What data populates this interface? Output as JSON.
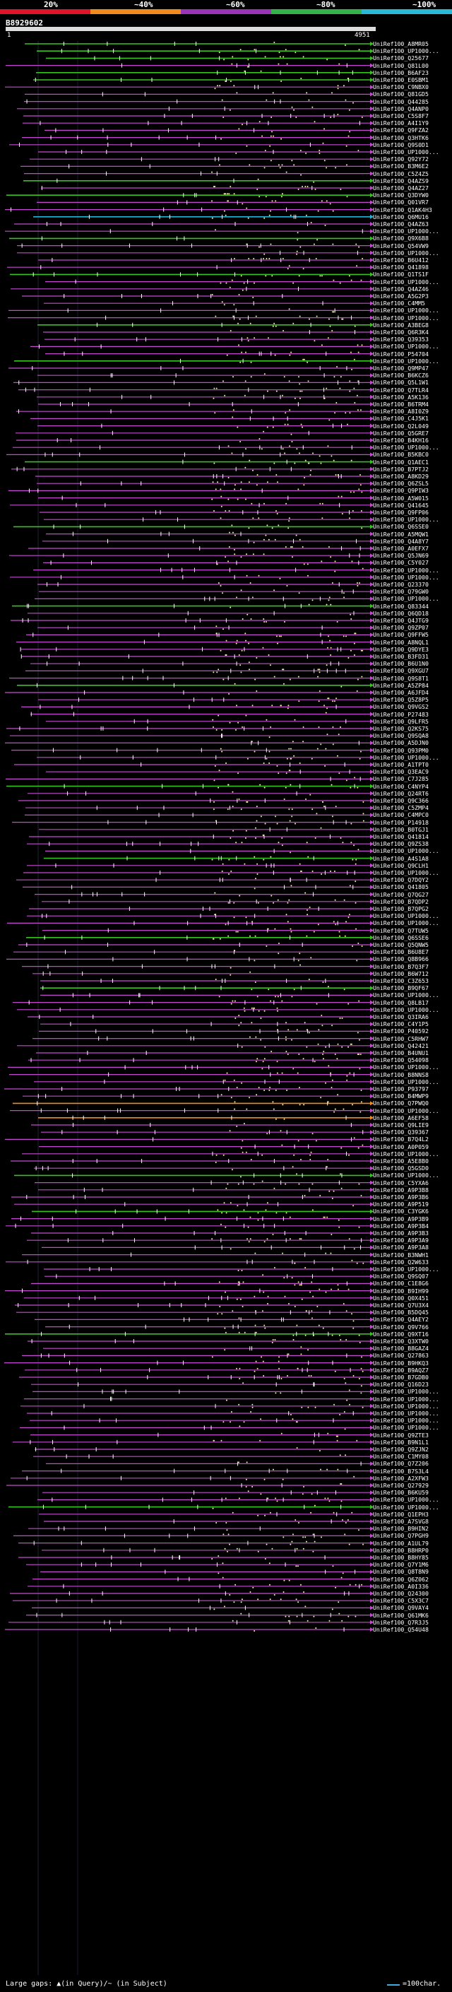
{
  "query": {
    "name": "B8929602",
    "start": "1",
    "end": "4951"
  },
  "scale": {
    "labels": [
      "20%",
      "~40%",
      "~60%",
      "~80%",
      "~100%"
    ],
    "colors": [
      "#e0132a",
      "#f08a1a",
      "#9b33b8",
      "#33b34a",
      "#2ab8d8"
    ]
  },
  "colors": {
    "magenta": "#c44bd0",
    "green": "#37c21f",
    "cyan": "#24b3d6",
    "orange": "#f28c1e",
    "dot": "#fff3a0"
  },
  "hits": [
    {
      "label": "UniRef100_A8MR05",
      "color": "green"
    },
    {
      "label": "UniRef100_UP1000...",
      "color": "green"
    },
    {
      "label": "UniRef100_Q25677",
      "color": "green"
    },
    {
      "label": "UniRef100_Q81L00",
      "color": "magenta"
    },
    {
      "label": "UniRef100_B6AF23",
      "color": "green"
    },
    {
      "label": "UniRef100_E0SBM1",
      "color": "green"
    },
    {
      "label": "UniRef100_C9NBX0",
      "color": "magenta"
    },
    {
      "label": "UniRef100_Q81GD5",
      "color": "magenta"
    },
    {
      "label": "UniRef100_Q44285",
      "color": "magenta"
    },
    {
      "label": "UniRef100_Q4ANP0",
      "color": "magenta"
    },
    {
      "label": "UniRef100_C5S8F7",
      "color": "magenta"
    },
    {
      "label": "UniRef100_A4I1Y9",
      "color": "magenta"
    },
    {
      "label": "UniRef100_Q9FZA2",
      "color": "magenta"
    },
    {
      "label": "UniRef100_Q3HTK6",
      "color": "magenta"
    },
    {
      "label": "UniRef100_Q9S0D1",
      "color": "magenta"
    },
    {
      "label": "UniRef100_UP1000...",
      "color": "magenta"
    },
    {
      "label": "UniRef100_Q92Y72",
      "color": "magenta"
    },
    {
      "label": "UniRef100_B3M6E2",
      "color": "magenta"
    },
    {
      "label": "UniRef100_C5Z4Z5",
      "color": "magenta"
    },
    {
      "label": "UniRef100_Q4AZS9",
      "color": "green"
    },
    {
      "label": "UniRef100_Q4AZ27",
      "color": "magenta"
    },
    {
      "label": "UniRef100_Q3DYW0",
      "color": "green"
    },
    {
      "label": "UniRef100_Q01VR7",
      "color": "magenta"
    },
    {
      "label": "UniRef100_Q1AK4H3",
      "color": "magenta"
    },
    {
      "label": "UniRef100_Q6MU16",
      "color": "cyan"
    },
    {
      "label": "UniRef100_Q4AZ63",
      "color": "magenta"
    },
    {
      "label": "UniRef100_UP1000...",
      "color": "magenta"
    },
    {
      "label": "UniRef100_Q9X6B8",
      "color": "green"
    },
    {
      "label": "UniRef100_Q54VW9",
      "color": "magenta"
    },
    {
      "label": "UniRef100_UP1000...",
      "color": "magenta"
    },
    {
      "label": "UniRef100_B6U412",
      "color": "magenta"
    },
    {
      "label": "UniRef100_Q41898",
      "color": "magenta"
    },
    {
      "label": "UniRef100_Q1TS1F",
      "color": "green"
    },
    {
      "label": "UniRef100_UP1000...",
      "color": "magenta"
    },
    {
      "label": "UniRef100_Q4AZ46",
      "color": "magenta"
    },
    {
      "label": "UniRef100_A5G2P3",
      "color": "magenta"
    },
    {
      "label": "UniRef100_C4MM5",
      "color": "magenta"
    },
    {
      "label": "UniRef100_UP1000...",
      "color": "magenta"
    },
    {
      "label": "UniRef100_UP1000...",
      "color": "magenta"
    },
    {
      "label": "UniRef100_A3BEG8",
      "color": "green"
    },
    {
      "label": "UniRef100_Q6R3K4",
      "color": "magenta"
    },
    {
      "label": "UniRef100_Q39353",
      "color": "magenta"
    },
    {
      "label": "UniRef100_UP1000...",
      "color": "magenta"
    },
    {
      "label": "UniRef100_P54704",
      "color": "magenta"
    },
    {
      "label": "UniRef100_UP1000...",
      "color": "green"
    },
    {
      "label": "UniRef100_Q9MP47",
      "color": "magenta"
    },
    {
      "label": "UniRef100_B6KCZ6",
      "color": "magenta"
    },
    {
      "label": "UniRef100_Q5L1W1",
      "color": "magenta"
    },
    {
      "label": "UniRef100_Q7TLR4",
      "color": "magenta"
    },
    {
      "label": "UniRef100_A5K136",
      "color": "magenta"
    },
    {
      "label": "UniRef100_B6TRM4",
      "color": "magenta"
    },
    {
      "label": "UniRef100_A8I0Z9",
      "color": "magenta"
    },
    {
      "label": "UniRef100_C4J5K1",
      "color": "magenta"
    },
    {
      "label": "UniRef100_Q2L049",
      "color": "magenta"
    },
    {
      "label": "UniRef100_Q5GRE7",
      "color": "magenta"
    },
    {
      "label": "UniRef100_B4KH16",
      "color": "magenta"
    },
    {
      "label": "UniRef100_UP1000...",
      "color": "magenta"
    },
    {
      "label": "UniRef100_B5KBC0",
      "color": "magenta"
    },
    {
      "label": "UniRef100_Q1AEC1",
      "color": "green"
    },
    {
      "label": "UniRef100_B7PTJ2",
      "color": "magenta"
    },
    {
      "label": "UniRef100_A8KD29",
      "color": "magenta"
    },
    {
      "label": "UniRef100_Q6ZSL5",
      "color": "magenta"
    },
    {
      "label": "UniRef100_Q9PIW3",
      "color": "magenta"
    },
    {
      "label": "UniRef100_A5W015",
      "color": "magenta"
    },
    {
      "label": "UniRef100_Q41645",
      "color": "magenta"
    },
    {
      "label": "UniRef100_Q9FP06",
      "color": "magenta"
    },
    {
      "label": "UniRef100_UP1000...",
      "color": "magenta"
    },
    {
      "label": "UniRef100_Q6SSE0",
      "color": "green"
    },
    {
      "label": "UniRef100_A5MQW1",
      "color": "magenta"
    },
    {
      "label": "UniRef100_Q4A8Y7",
      "color": "magenta"
    },
    {
      "label": "UniRef100_A0EFX7",
      "color": "magenta"
    },
    {
      "label": "UniRef100_Q5JN69",
      "color": "magenta"
    },
    {
      "label": "UniRef100_C5Y027",
      "color": "magenta"
    },
    {
      "label": "UniRef100_UP1000...",
      "color": "magenta"
    },
    {
      "label": "UniRef100_UP1000...",
      "color": "magenta"
    },
    {
      "label": "UniRef100_Q23370",
      "color": "magenta"
    },
    {
      "label": "UniRef100_Q79GW0",
      "color": "magenta"
    },
    {
      "label": "UniRef100_UP1000...",
      "color": "magenta"
    },
    {
      "label": "UniRef100_Q83344",
      "color": "green"
    },
    {
      "label": "UniRef100_Q6QD18",
      "color": "magenta"
    },
    {
      "label": "UniRef100_Q4JTG9",
      "color": "magenta"
    },
    {
      "label": "UniRef100_Q9ZP07",
      "color": "magenta"
    },
    {
      "label": "UniRef100_Q9FFW5",
      "color": "magenta"
    },
    {
      "label": "UniRef100_A8NQL1",
      "color": "magenta"
    },
    {
      "label": "UniRef100_Q9DYE3",
      "color": "magenta"
    },
    {
      "label": "UniRef100_B3FD31",
      "color": "magenta"
    },
    {
      "label": "UniRef100_B6U1N0",
      "color": "magenta"
    },
    {
      "label": "UniRef100_Q9XGU7",
      "color": "magenta"
    },
    {
      "label": "UniRef100_Q9S8T1",
      "color": "magenta"
    },
    {
      "label": "UniRef100_A5ZP84",
      "color": "green"
    },
    {
      "label": "UniRef100_A6JFD4",
      "color": "magenta"
    },
    {
      "label": "UniRef100_Q5Z8P5",
      "color": "magenta"
    },
    {
      "label": "UniRef100_Q9VGS2",
      "color": "magenta"
    },
    {
      "label": "UniRef100_P27483",
      "color": "magenta"
    },
    {
      "label": "UniRef100_Q9LFR5",
      "color": "magenta"
    },
    {
      "label": "UniRef100_Q2KS75",
      "color": "magenta"
    },
    {
      "label": "UniRef100_Q9SQA8",
      "color": "magenta"
    },
    {
      "label": "UniRef100_A5DJN0",
      "color": "magenta"
    },
    {
      "label": "UniRef100_Q93PM0",
      "color": "magenta"
    },
    {
      "label": "UniRef100_UP1000...",
      "color": "magenta"
    },
    {
      "label": "UniRef100_A1TPT0",
      "color": "magenta"
    },
    {
      "label": "UniRef100_Q3EAC9",
      "color": "magenta"
    },
    {
      "label": "UniRef100_C7J285",
      "color": "magenta"
    },
    {
      "label": "UniRef100_C4NYP4",
      "color": "green"
    },
    {
      "label": "UniRef100_Q24RT6",
      "color": "magenta"
    },
    {
      "label": "UniRef100_Q9C366",
      "color": "magenta"
    },
    {
      "label": "UniRef100_C5ZMP4",
      "color": "magenta"
    },
    {
      "label": "UniRef100_C4MPC0",
      "color": "magenta"
    },
    {
      "label": "UniRef100_P14918",
      "color": "magenta"
    },
    {
      "label": "UniRef100_B0TGJ1",
      "color": "magenta"
    },
    {
      "label": "UniRef100_Q41814",
      "color": "magenta"
    },
    {
      "label": "UniRef100_Q9ZS38",
      "color": "magenta"
    },
    {
      "label": "UniRef100_UP1000...",
      "color": "magenta"
    },
    {
      "label": "UniRef100_A4S1A8",
      "color": "green"
    },
    {
      "label": "UniRef100_Q9CLH1",
      "color": "magenta"
    },
    {
      "label": "UniRef100_UP1000...",
      "color": "magenta"
    },
    {
      "label": "UniRef100_Q7DQY2",
      "color": "magenta"
    },
    {
      "label": "UniRef100_Q41805",
      "color": "magenta"
    },
    {
      "label": "UniRef100_Q7QG27",
      "color": "magenta"
    },
    {
      "label": "UniRef100_B7QDP2",
      "color": "magenta"
    },
    {
      "label": "UniRef100_B7QPG2",
      "color": "magenta"
    },
    {
      "label": "UniRef100_UP1000...",
      "color": "magenta"
    },
    {
      "label": "UniRef100_UP1000...",
      "color": "magenta"
    },
    {
      "label": "UniRef100_Q7TUW5",
      "color": "magenta"
    },
    {
      "label": "UniRef100_Q6SSE6",
      "color": "green"
    },
    {
      "label": "UniRef100_Q5QNW5",
      "color": "magenta"
    },
    {
      "label": "UniRef100_B6U8E7",
      "color": "magenta"
    },
    {
      "label": "UniRef100_Q8B966",
      "color": "magenta"
    },
    {
      "label": "UniRef100_B7Q3F7",
      "color": "magenta"
    },
    {
      "label": "UniRef100_B6W712",
      "color": "magenta"
    },
    {
      "label": "UniRef100_C3Z653",
      "color": "magenta"
    },
    {
      "label": "UniRef100_B9QF67",
      "color": "green"
    },
    {
      "label": "UniRef100_UP1000...",
      "color": "magenta"
    },
    {
      "label": "UniRef100_Q8LB17",
      "color": "magenta"
    },
    {
      "label": "UniRef100_UP1000...",
      "color": "magenta"
    },
    {
      "label": "UniRef100_Q3IRA6",
      "color": "magenta"
    },
    {
      "label": "UniRef100_C4Y1P5",
      "color": "magenta"
    },
    {
      "label": "UniRef100_P40592",
      "color": "magenta"
    },
    {
      "label": "UniRef100_C5RHW7",
      "color": "magenta"
    },
    {
      "label": "UniRef100_Q42421",
      "color": "magenta"
    },
    {
      "label": "UniRef100_B4UNU1",
      "color": "magenta"
    },
    {
      "label": "UniRef100_Q54098",
      "color": "magenta"
    },
    {
      "label": "UniRef100_UP1000...",
      "color": "magenta"
    },
    {
      "label": "UniRef100_B8NNS8",
      "color": "magenta"
    },
    {
      "label": "UniRef100_UP1000...",
      "color": "magenta"
    },
    {
      "label": "UniRef100_P93797",
      "color": "magenta"
    },
    {
      "label": "UniRef100_B4MWP9",
      "color": "magenta"
    },
    {
      "label": "UniRef100_Q7PWQ0",
      "color": "orange"
    },
    {
      "label": "UniRef100_UP1000...",
      "color": "magenta"
    },
    {
      "label": "UniRef100_A6EF58",
      "color": "orange"
    },
    {
      "label": "UniRef100_Q9LIE9",
      "color": "magenta"
    },
    {
      "label": "UniRef100_Q39367",
      "color": "magenta"
    },
    {
      "label": "UniRef100_B7Q4L2",
      "color": "magenta"
    },
    {
      "label": "UniRef100_A0P059",
      "color": "magenta"
    },
    {
      "label": "UniRef100_UP1000...",
      "color": "magenta"
    },
    {
      "label": "UniRef100_A5E8B0",
      "color": "magenta"
    },
    {
      "label": "UniRef100_Q5GSD0",
      "color": "magenta"
    },
    {
      "label": "UniRef100_UP1000...",
      "color": "green"
    },
    {
      "label": "UniRef100_C5YXA6",
      "color": "magenta"
    },
    {
      "label": "UniRef100_A9P3B8",
      "color": "magenta"
    },
    {
      "label": "UniRef100_A9P3B6",
      "color": "magenta"
    },
    {
      "label": "UniRef100_A9P519",
      "color": "magenta"
    },
    {
      "label": "UniRef100_C3YGK6",
      "color": "green"
    },
    {
      "label": "UniRef100_A9P3B9",
      "color": "magenta"
    },
    {
      "label": "UniRef100_A9P3B4",
      "color": "magenta"
    },
    {
      "label": "UniRef100_A9P3B3",
      "color": "magenta"
    },
    {
      "label": "UniRef100_A9P3A9",
      "color": "magenta"
    },
    {
      "label": "UniRef100_A9P3A8",
      "color": "magenta"
    },
    {
      "label": "UniRef100_B3NWH1",
      "color": "magenta"
    },
    {
      "label": "UniRef100_Q2W633",
      "color": "magenta"
    },
    {
      "label": "UniRef100_UP1000...",
      "color": "magenta"
    },
    {
      "label": "UniRef100_Q9SQ07",
      "color": "magenta"
    },
    {
      "label": "UniRef100_C1E8G6",
      "color": "magenta"
    },
    {
      "label": "UniRef100_B9IH99",
      "color": "magenta"
    },
    {
      "label": "UniRef100_Q0X451",
      "color": "magenta"
    },
    {
      "label": "UniRef100_Q7U3X4",
      "color": "magenta"
    },
    {
      "label": "UniRef100_B5DQ45",
      "color": "magenta"
    },
    {
      "label": "UniRef100_Q4AEY2",
      "color": "magenta"
    },
    {
      "label": "UniRef100_Q9V766",
      "color": "magenta"
    },
    {
      "label": "UniRef100_Q9XT16",
      "color": "green"
    },
    {
      "label": "UniRef100_Q3XTW0",
      "color": "magenta"
    },
    {
      "label": "UniRef100_B8GAZ4",
      "color": "magenta"
    },
    {
      "label": "UniRef100_Q27863",
      "color": "magenta"
    },
    {
      "label": "UniRef100_B9HKQ3",
      "color": "magenta"
    },
    {
      "label": "UniRef100_B9AQZ7",
      "color": "magenta"
    },
    {
      "label": "UniRef100_B7GDB0",
      "color": "magenta"
    },
    {
      "label": "UniRef100_Q16D23",
      "color": "magenta"
    },
    {
      "label": "UniRef100_UP1000...",
      "color": "magenta"
    },
    {
      "label": "UniRef100_UP1000...",
      "color": "magenta"
    },
    {
      "label": "UniRef100_UP1000...",
      "color": "magenta"
    },
    {
      "label": "UniRef100_UP1000...",
      "color": "magenta"
    },
    {
      "label": "UniRef100_UP1000...",
      "color": "magenta"
    },
    {
      "label": "UniRef100_UP1000...",
      "color": "magenta"
    },
    {
      "label": "UniRef100_Q9ZTE3",
      "color": "magenta"
    },
    {
      "label": "UniRef100_B9N1L1",
      "color": "magenta"
    },
    {
      "label": "UniRef100_Q9ZJN2",
      "color": "magenta"
    },
    {
      "label": "UniRef100_C1MY08",
      "color": "magenta"
    },
    {
      "label": "UniRef100_Q7Z206",
      "color": "magenta"
    },
    {
      "label": "UniRef100_B7S3L4",
      "color": "magenta"
    },
    {
      "label": "UniRef100_A2XFW3",
      "color": "magenta"
    },
    {
      "label": "UniRef100_Q27929",
      "color": "magenta"
    },
    {
      "label": "UniRef100_B6KU59",
      "color": "magenta"
    },
    {
      "label": "UniRef100_UP1000...",
      "color": "magenta"
    },
    {
      "label": "UniRef100_UP1000...",
      "color": "green"
    },
    {
      "label": "UniRef100_Q1EPH3",
      "color": "magenta"
    },
    {
      "label": "UniRef100_A7SVG8",
      "color": "magenta"
    },
    {
      "label": "UniRef100_B9HIN2",
      "color": "magenta"
    },
    {
      "label": "UniRef100_Q7PGH9",
      "color": "magenta"
    },
    {
      "label": "UniRef100_A1UL79",
      "color": "magenta"
    },
    {
      "label": "UniRef100_B8HRP0",
      "color": "magenta"
    },
    {
      "label": "UniRef100_B8HY85",
      "color": "magenta"
    },
    {
      "label": "UniRef100_Q7Y1M6",
      "color": "magenta"
    },
    {
      "label": "UniRef100_Q8T8N9",
      "color": "magenta"
    },
    {
      "label": "UniRef100_Q6Z062",
      "color": "magenta"
    },
    {
      "label": "UniRef100_A0I336",
      "color": "magenta"
    },
    {
      "label": "UniRef100_Q24300",
      "color": "magenta"
    },
    {
      "label": "UniRef100_C5X3C7",
      "color": "magenta"
    },
    {
      "label": "UniRef100_Q9VAY4",
      "color": "magenta"
    },
    {
      "label": "UniRef100_Q61MK6",
      "color": "magenta"
    },
    {
      "label": "UniRef100_Q7R3J5",
      "color": "magenta"
    },
    {
      "label": "UniRef100_Q54U48",
      "color": "magenta"
    }
  ],
  "footer": {
    "gaps": "Large gaps: ▲(in Query)/~ (in Subject)",
    "scale": "=100char."
  }
}
